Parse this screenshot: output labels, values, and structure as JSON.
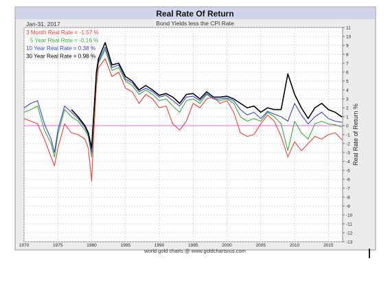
{
  "chart_data": {
    "type": "line",
    "title": "Real Rate Of Return",
    "subtitle": "Bond Yields less the CPI Rate",
    "date_label": "Jan-31, 2017",
    "ylabel": "Real Rate of Return %",
    "footer": "world gold charts @ www.goldchartsrus.com",
    "xlim": [
      1970,
      2017.1
    ],
    "ylim": [
      -13,
      11
    ],
    "x_ticks": [
      "1970",
      "1975",
      "1980",
      "1985",
      "1990",
      "1995",
      "2000",
      "2005",
      "2010",
      "2015"
    ],
    "y_ticks": [
      "11",
      "10",
      "9",
      "8",
      "7",
      "6",
      "5",
      "4",
      "3",
      "2",
      "1",
      "0",
      "-1",
      "-2",
      "-3",
      "-4",
      "-5",
      "-6",
      "-7",
      "-8",
      "-9",
      "-10",
      "-11",
      "-12",
      "-13"
    ],
    "grid": true,
    "legend_position": "top-left",
    "reference_line": 0,
    "reference_color": "#e060e0",
    "series": [
      {
        "name": "3 Month Real Rate = -1.57 %",
        "color": "#e8413c",
        "x": [
          1970,
          1971,
          1972,
          1973,
          1974,
          1974.5,
          1975,
          1976,
          1977,
          1978,
          1979,
          1979.5,
          1980,
          1980.3,
          1980.7,
          1981,
          1982,
          1983,
          1984,
          1985,
          1986,
          1987,
          1988,
          1989,
          1990,
          1991,
          1992,
          1993,
          1994,
          1995,
          1996,
          1997,
          1998,
          1999,
          2000,
          2001,
          2002,
          2003,
          2004,
          2005,
          2006,
          2007,
          2008,
          2009,
          2010,
          2011,
          2012,
          2013,
          2014,
          2015,
          2016,
          2017
        ],
        "y": [
          0.8,
          0.5,
          0.2,
          -1.5,
          -3.5,
          -4.5,
          -2.5,
          0.2,
          -0.8,
          -1.0,
          -1.5,
          -2.5,
          -6.2,
          -1.0,
          4.5,
          6.5,
          7.5,
          5.5,
          6.0,
          4.2,
          3.8,
          2.5,
          3.5,
          3.0,
          2.0,
          2.2,
          0.2,
          -0.5,
          0.5,
          2.5,
          2.0,
          3.0,
          3.2,
          2.5,
          2.8,
          1.5,
          -0.8,
          -1.2,
          -1.0,
          0.2,
          1.2,
          0.5,
          -1.2,
          -3.5,
          -1.8,
          -2.8,
          -2.0,
          -1.2,
          -1.5,
          -1.0,
          -0.8,
          -1.57
        ]
      },
      {
        "name": "5 Year Real Rate = -0.16 %",
        "color": "#3ea83e",
        "x": [
          1970,
          1971,
          1972,
          1973,
          1974,
          1974.5,
          1975,
          1976,
          1977,
          1978,
          1979,
          1979.5,
          1980,
          1980.3,
          1980.7,
          1981,
          1982,
          1983,
          1984,
          1985,
          1986,
          1987,
          1988,
          1989,
          1990,
          1991,
          1992,
          1993,
          1994,
          1995,
          1996,
          1997,
          1998,
          1999,
          2000,
          2001,
          2002,
          2003,
          2004,
          2005,
          2006,
          2007,
          2008,
          2009,
          2010,
          2011,
          2012,
          2013,
          2014,
          2015,
          2016,
          2017
        ],
        "y": [
          1.5,
          1.8,
          2.2,
          -0.5,
          -2.0,
          -3.5,
          -1.0,
          1.8,
          1.0,
          0.5,
          -0.5,
          -1.2,
          -3.5,
          0.5,
          5.5,
          7.0,
          8.5,
          6.2,
          6.5,
          5.0,
          4.5,
          3.5,
          4.0,
          3.5,
          2.8,
          3.0,
          2.2,
          1.5,
          2.8,
          3.0,
          2.5,
          3.5,
          3.0,
          2.8,
          3.0,
          2.5,
          1.0,
          0.5,
          0.8,
          0.5,
          1.5,
          1.0,
          0.2,
          -2.8,
          0.5,
          -0.8,
          -1.5,
          0.2,
          0.5,
          0.2,
          0.1,
          -0.16
        ]
      },
      {
        "name": "10 Year Real Rate = 0.38 %",
        "color": "#3b43cc",
        "x": [
          1970,
          1971,
          1972,
          1973,
          1974,
          1974.5,
          1975,
          1976,
          1977,
          1978,
          1979,
          1979.5,
          1980,
          1980.3,
          1980.7,
          1981,
          1982,
          1983,
          1984,
          1985,
          1986,
          1987,
          1988,
          1989,
          1990,
          1991,
          1992,
          1993,
          1994,
          1995,
          1996,
          1997,
          1998,
          1999,
          2000,
          2001,
          2002,
          2003,
          2004,
          2005,
          2006,
          2007,
          2008,
          2009,
          2010,
          2011,
          2012,
          2013,
          2014,
          2015,
          2016,
          2017
        ],
        "y": [
          2.0,
          2.5,
          2.8,
          0.2,
          -1.5,
          -3.0,
          -0.5,
          2.2,
          1.5,
          0.8,
          -0.2,
          -1.0,
          -3.0,
          1.0,
          5.8,
          7.2,
          8.8,
          6.5,
          6.8,
          5.2,
          4.8,
          3.8,
          4.2,
          3.8,
          3.2,
          3.4,
          2.8,
          2.2,
          3.2,
          3.3,
          2.8,
          3.6,
          3.0,
          3.0,
          3.1,
          2.8,
          1.8,
          1.2,
          1.5,
          0.8,
          1.6,
          1.3,
          1.0,
          0.5,
          2.5,
          1.2,
          0.2,
          1.0,
          1.5,
          0.8,
          0.5,
          0.38
        ]
      },
      {
        "name": "30 Year Real Rate = 0.98 %",
        "color": "#000000",
        "x": [
          1977,
          1978,
          1979,
          1979.5,
          1980,
          1980.3,
          1980.7,
          1981,
          1982,
          1983,
          1984,
          1985,
          1986,
          1987,
          1988,
          1989,
          1990,
          1991,
          1992,
          1993,
          1994,
          1995,
          1996,
          1997,
          1998,
          1999,
          2000,
          2001,
          2002,
          2003,
          2004,
          2005,
          2006,
          2007,
          2008,
          2009,
          2010,
          2011,
          2012,
          2013,
          2014,
          2015,
          2016,
          2017
        ],
        "y": [
          1.8,
          1.0,
          0.0,
          -0.8,
          -2.5,
          1.2,
          6.0,
          7.5,
          9.3,
          6.8,
          7.0,
          5.5,
          5.0,
          4.0,
          4.5,
          4.0,
          3.4,
          3.6,
          3.2,
          2.5,
          3.5,
          3.6,
          3.0,
          3.8,
          3.2,
          3.2,
          3.3,
          3.0,
          2.5,
          2.0,
          2.2,
          1.5,
          2.0,
          1.8,
          1.8,
          5.8,
          3.5,
          2.0,
          0.8,
          2.0,
          2.5,
          1.8,
          1.5,
          0.98
        ]
      }
    ]
  }
}
